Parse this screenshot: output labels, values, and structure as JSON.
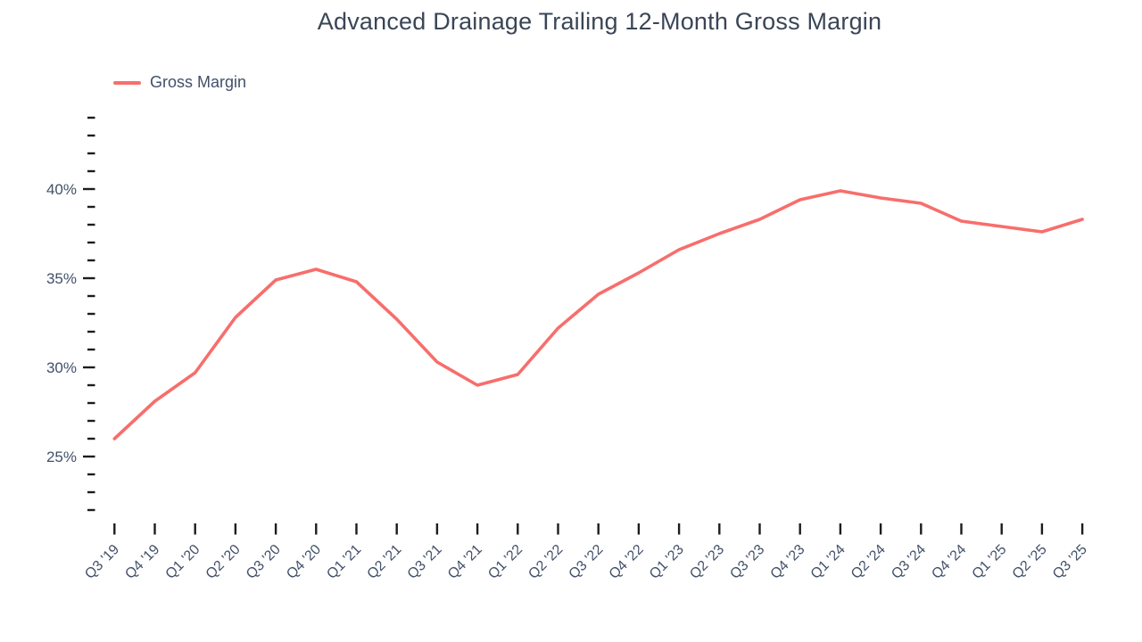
{
  "title": "Advanced Drainage Trailing 12-Month Gross Margin",
  "legend": {
    "label": "Gross Margin"
  },
  "colors": {
    "line": "#F76E6C",
    "title_text": "#3A4556",
    "axis_text": "#42506A",
    "tick": "#1C1C1C",
    "background": "#FFFFFF"
  },
  "chart_data": {
    "type": "line",
    "title": "Advanced Drainage Trailing 12-Month Gross Margin",
    "xlabel": "",
    "ylabel": "",
    "grid": false,
    "legend_position": "top-left",
    "categories": [
      "Q3 '19",
      "Q4 '19",
      "Q1 '20",
      "Q2 '20",
      "Q3 '20",
      "Q4 '20",
      "Q1 '21",
      "Q2 '21",
      "Q3 '21",
      "Q4 '21",
      "Q1 '22",
      "Q2 '22",
      "Q3 '22",
      "Q4 '22",
      "Q1 '23",
      "Q2 '23",
      "Q3 '23",
      "Q4 '23",
      "Q1 '24",
      "Q2 '24",
      "Q3 '24",
      "Q4 '24",
      "Q1 '25",
      "Q2 '25",
      "Q3 '25"
    ],
    "series": [
      {
        "name": "Gross Margin",
        "color": "#F76E6C",
        "values": [
          26.0,
          28.1,
          29.7,
          32.8,
          34.9,
          35.5,
          34.8,
          32.7,
          30.3,
          29.0,
          29.6,
          32.2,
          34.1,
          35.3,
          36.6,
          37.5,
          38.3,
          39.4,
          39.9,
          39.5,
          39.2,
          38.2,
          37.9,
          37.6,
          38.3
        ]
      }
    ],
    "ylim": [
      22,
      44
    ],
    "y_minor_tick_step": 1,
    "y_label_step": 5,
    "y_labeled_ticks": [
      "25%",
      "30%",
      "35%",
      "40%"
    ],
    "y_unit": "%"
  }
}
